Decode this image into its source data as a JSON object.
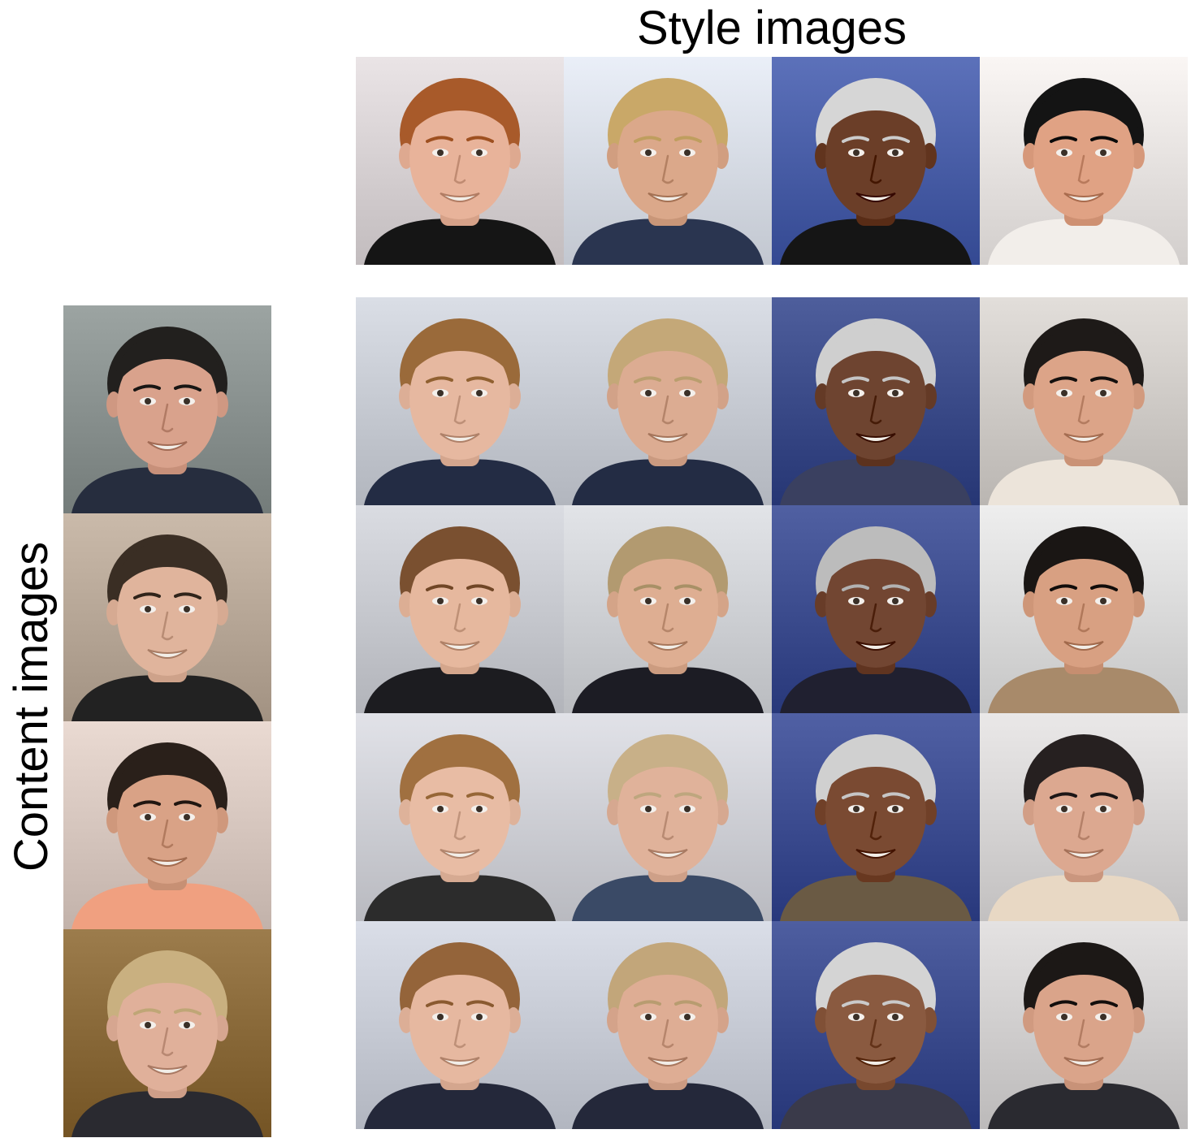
{
  "figure": {
    "style_heading": "Style images",
    "content_heading": "Content images"
  },
  "style_images": [
    {
      "hair": "#a85a2a",
      "skin": "#e8b39a",
      "bg": "#d8d2d4",
      "shirt": "#151515",
      "bright": false
    },
    {
      "hair": "#c9a868",
      "skin": "#dba88a",
      "bg": "#d8dde6",
      "shirt": "#2a3550",
      "bright": false
    },
    {
      "hair": "#d6d6d6",
      "skin": "#6b3e28",
      "bg": "#4a5fa8",
      "shirt": "#151515",
      "bright": false
    },
    {
      "hair": "#141414",
      "skin": "#e0a284",
      "bg": "#e8e4e2",
      "shirt": "#f2eeea",
      "bright": false
    }
  ],
  "content_images": [
    {
      "hair": "#22201e",
      "skin": "#d9a28c",
      "bg": "#8a9290",
      "shirt": "#262d3e"
    },
    {
      "hair": "#3a2e24",
      "skin": "#e0b49c",
      "bg": "#b8a898",
      "shirt": "#222222"
    },
    {
      "hair": "#2a201a",
      "skin": "#d9a286",
      "bg": "#d8c8c0",
      "shirt": "#f0a080"
    },
    {
      "hair": "#c9b080",
      "skin": "#e0b09a",
      "bg": "#8a6a3a",
      "shirt": "#2a2a30"
    }
  ],
  "results": [
    [
      {
        "hair": "#9a6a3a",
        "skin": "#e6b8a0",
        "bg": "#c8ccd4",
        "shirt": "#232c44"
      },
      {
        "hair": "#c4a878",
        "skin": "#dcac92",
        "bg": "#c8ccd4",
        "shirt": "#232c44"
      },
      {
        "hair": "#cfcfcf",
        "skin": "#6e4430",
        "bg": "#3c4c8a",
        "shirt": "#3a4060"
      },
      {
        "hair": "#1e1a18",
        "skin": "#dca488",
        "bg": "#d0ccc8",
        "shirt": "#ece4da"
      }
    ],
    [
      {
        "hair": "#7a5030",
        "skin": "#e6b89e",
        "bg": "#c8cad0",
        "shirt": "#1c1c20"
      },
      {
        "hair": "#b29a70",
        "skin": "#deae92",
        "bg": "#d0d2d6",
        "shirt": "#1c1c24"
      },
      {
        "hair": "#bcbcbc",
        "skin": "#724632",
        "bg": "#3e4e90",
        "shirt": "#202030"
      },
      {
        "hair": "#1a1614",
        "skin": "#d8a082",
        "bg": "#dcdcdc",
        "shirt": "#a88a6a"
      }
    ],
    [
      {
        "hair": "#a07040",
        "skin": "#e8bca4",
        "bg": "#cfd0d6",
        "shirt": "#2c2c2c"
      },
      {
        "hair": "#c8b088",
        "skin": "#e0b29a",
        "bg": "#cfd0d6",
        "shirt": "#3a4a66"
      },
      {
        "hair": "#d0d0d0",
        "skin": "#7a4a32",
        "bg": "#3e4e92",
        "shirt": "#6a5a44"
      },
      {
        "hair": "#262020",
        "skin": "#dca890",
        "bg": "#d8d6d6",
        "shirt": "#e8d8c4"
      }
    ],
    [
      {
        "hair": "#94643a",
        "skin": "#e6b8a0",
        "bg": "#c8ccd6",
        "shirt": "#24283a"
      },
      {
        "hair": "#c2a67a",
        "skin": "#dead94",
        "bg": "#c8ccd6",
        "shirt": "#24283a"
      },
      {
        "hair": "#d4d4d4",
        "skin": "#8a5a40",
        "bg": "#3c4c8e",
        "shirt": "#3a3a4a"
      },
      {
        "hair": "#1c1816",
        "skin": "#daa48a",
        "bg": "#d2d0d0",
        "shirt": "#2a2a30"
      }
    ]
  ]
}
